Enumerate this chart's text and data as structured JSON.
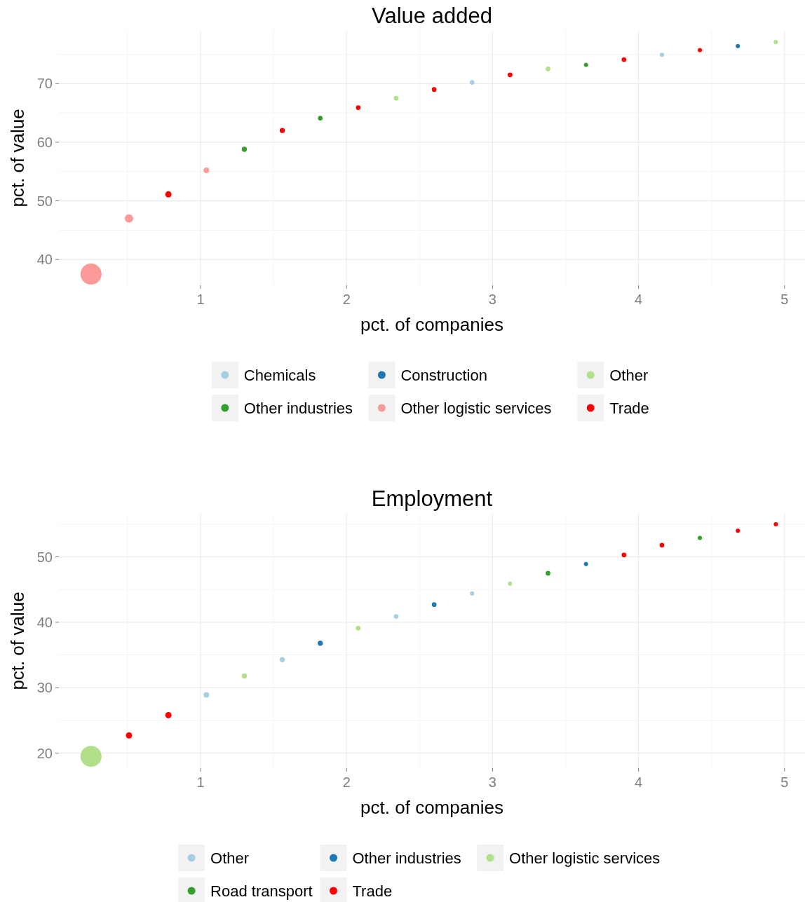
{
  "chart_data": [
    {
      "type": "bubble",
      "title": "Value added",
      "xlabel": "pct. of companies",
      "ylabel": "pct. of value",
      "xlim": [
        0.03,
        5.14
      ],
      "ylim": [
        35.6,
        79
      ],
      "xticks": [
        1,
        2,
        3,
        4,
        5
      ],
      "yticks": [
        40,
        50,
        60,
        70
      ],
      "grid": true,
      "legend": "bottom",
      "series": [
        {
          "name": "Chemicals",
          "color": "#a6cee3",
          "x": [
            2.86,
            4.16
          ],
          "values": [
            70.2,
            74.9
          ],
          "sizes": [
            0.05,
            0.04
          ]
        },
        {
          "name": "Construction",
          "color": "#1f78b4",
          "x": [
            4.68
          ],
          "values": [
            76.4
          ],
          "sizes": [
            0.04
          ]
        },
        {
          "name": "Other",
          "color": "#b2df8a",
          "x": [
            2.34,
            3.38,
            4.94
          ],
          "values": [
            67.5,
            72.5,
            77.1
          ],
          "sizes": [
            0.05,
            0.05,
            0.04
          ]
        },
        {
          "name": "Other industries",
          "color": "#33a02c",
          "x": [
            1.3,
            1.82,
            3.64
          ],
          "values": [
            58.8,
            64.1,
            73.2
          ],
          "sizes": [
            0.06,
            0.05,
            0.04
          ]
        },
        {
          "name": "Other logistic services",
          "color": "#fb9a99",
          "x": [
            0.25,
            0.51,
            1.04
          ],
          "values": [
            37.5,
            47.0,
            55.2
          ],
          "sizes": [
            1,
            0.16,
            0.07
          ]
        },
        {
          "name": "Trade",
          "color": "#ff0000",
          "x": [
            0.78,
            1.56,
            2.08,
            2.6,
            3.12,
            3.9,
            4.42
          ],
          "values": [
            51.1,
            62.0,
            65.9,
            69.0,
            71.5,
            74.1,
            75.7
          ],
          "sizes": [
            0.09,
            0.06,
            0.05,
            0.05,
            0.05,
            0.05,
            0.04
          ]
        }
      ]
    },
    {
      "type": "bubble",
      "title": "Employment",
      "xlabel": "pct. of companies",
      "ylabel": "pct. of value",
      "xlim": [
        0.03,
        5.14
      ],
      "ylim": [
        17.7,
        56.6
      ],
      "xticks": [
        1,
        2,
        3,
        4,
        5
      ],
      "yticks": [
        20,
        30,
        40,
        50
      ],
      "grid": true,
      "legend": "bottom",
      "series": [
        {
          "name": "Other",
          "color": "#a6cee3",
          "x": [
            1.04,
            1.56,
            2.34,
            2.86
          ],
          "values": [
            28.9,
            34.3,
            40.9,
            44.4
          ],
          "sizes": [
            0.07,
            0.06,
            0.05,
            0.04
          ]
        },
        {
          "name": "Other industries",
          "color": "#1f78b4",
          "x": [
            1.82,
            2.6,
            3.64
          ],
          "values": [
            36.8,
            42.7,
            48.9
          ],
          "sizes": [
            0.06,
            0.05,
            0.04
          ]
        },
        {
          "name": "Other logistic services",
          "color": "#b2df8a",
          "x": [
            0.25,
            1.3,
            2.08,
            3.12
          ],
          "values": [
            19.5,
            31.8,
            39.1,
            45.9
          ],
          "sizes": [
            1,
            0.06,
            0.05,
            0.04
          ]
        },
        {
          "name": "Road transport",
          "color": "#33a02c",
          "x": [
            3.38,
            4.42
          ],
          "values": [
            47.5,
            52.9
          ],
          "sizes": [
            0.05,
            0.04
          ]
        },
        {
          "name": "Trade",
          "color": "#ff0000",
          "x": [
            0.51,
            0.78,
            3.9,
            4.16,
            4.68,
            4.94
          ],
          "values": [
            22.7,
            25.8,
            50.3,
            51.8,
            54.0,
            55.0
          ],
          "sizes": [
            0.09,
            0.09,
            0.05,
            0.05,
            0.04,
            0.04
          ]
        }
      ]
    }
  ]
}
